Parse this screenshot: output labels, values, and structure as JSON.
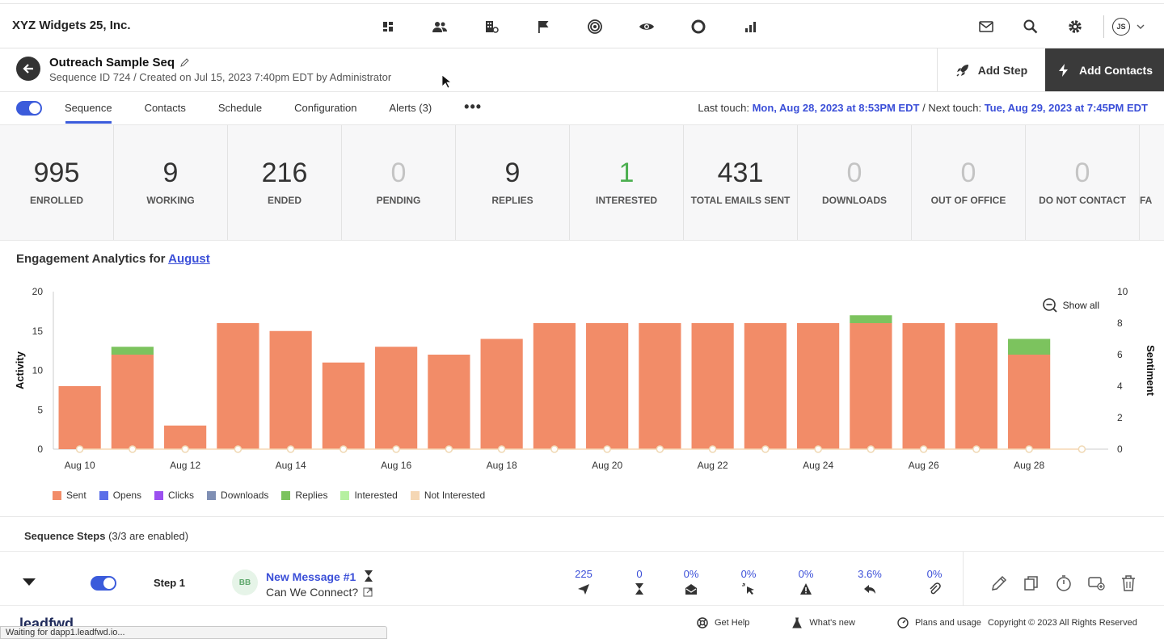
{
  "brand": "XYZ Widgets 25, Inc.",
  "nav_icons": [
    "dashboard-icon",
    "contacts-icon",
    "companies-icon",
    "flag-icon",
    "target-icon",
    "eye-icon",
    "circle-icon",
    "reports-icon"
  ],
  "right_icons": [
    "mail-icon",
    "search-icon",
    "gear-icon"
  ],
  "user": {
    "initials": "JS"
  },
  "header": {
    "title": "Outreach Sample Seq",
    "subtitle": "Sequence ID 724 / Created on Jul 15, 2023 7:40pm EDT by Administrator",
    "add_step": "Add Step",
    "add_contacts": "Add Contacts"
  },
  "tabs": [
    "Sequence",
    "Contacts",
    "Schedule",
    "Configuration",
    "Alerts (3)"
  ],
  "active_tab": "Sequence",
  "touch": {
    "last_label": "Last touch:",
    "last_value": "Mon, Aug 28, 2023 at 8:53PM EDT",
    "separator": "/",
    "next_label": "Next touch:",
    "next_value": "Tue, Aug 29, 2023 at 7:45PM EDT"
  },
  "stats": [
    {
      "value": "995",
      "label": "ENROLLED",
      "style": "normal"
    },
    {
      "value": "9",
      "label": "WORKING",
      "style": "normal"
    },
    {
      "value": "216",
      "label": "ENDED",
      "style": "normal"
    },
    {
      "value": "0",
      "label": "PENDING",
      "style": "zero"
    },
    {
      "value": "9",
      "label": "REPLIES",
      "style": "normal"
    },
    {
      "value": "1",
      "label": "INTERESTED",
      "style": "green"
    },
    {
      "value": "431",
      "label": "TOTAL EMAILS SENT",
      "style": "normal"
    },
    {
      "value": "0",
      "label": "DOWNLOADS",
      "style": "zero"
    },
    {
      "value": "0",
      "label": "OUT OF OFFICE",
      "style": "zero"
    },
    {
      "value": "0",
      "label": "DO NOT CONTACT",
      "style": "zero"
    },
    {
      "value": "",
      "label": "FA",
      "style": "zero"
    }
  ],
  "analytics": {
    "title_prefix": "Engagement Analytics for",
    "month": "August",
    "show_all": "Show all"
  },
  "chart_data": {
    "type": "bar",
    "stacked": true,
    "categories": [
      "Aug 10",
      "Aug 11",
      "Aug 12",
      "Aug 13",
      "Aug 14",
      "Aug 15",
      "Aug 16",
      "Aug 17",
      "Aug 18",
      "Aug 19",
      "Aug 20",
      "Aug 21",
      "Aug 22",
      "Aug 23",
      "Aug 24",
      "Aug 25",
      "Aug 26",
      "Aug 27",
      "Aug 28",
      "Aug 29"
    ],
    "tick_labels": [
      "Aug 10",
      "Aug 12",
      "Aug 14",
      "Aug 16",
      "Aug 18",
      "Aug 20",
      "Aug 22",
      "Aug 24",
      "Aug 26",
      "Aug 28"
    ],
    "series": [
      {
        "name": "Sent",
        "color": "#f28c68",
        "values": [
          8,
          12,
          3,
          16,
          15,
          11,
          13,
          12,
          14,
          16,
          16,
          16,
          16,
          16,
          16,
          16,
          16,
          16,
          12,
          0
        ]
      },
      {
        "name": "Replies",
        "color": "#7cc35e",
        "values": [
          0,
          1,
          0,
          0,
          0,
          0,
          0,
          0,
          0,
          0,
          0,
          0,
          0,
          0,
          0,
          1,
          0,
          0,
          2,
          0
        ]
      }
    ],
    "sentiment": [
      0,
      0,
      0,
      0,
      0,
      0,
      0,
      0,
      0,
      0,
      0,
      0,
      0,
      0,
      0,
      0,
      0,
      0,
      0,
      0
    ],
    "ylabel": "Activity",
    "y2label": "Sentiment",
    "ylim": [
      0,
      20
    ],
    "y_ticks": [
      0,
      5,
      10,
      15,
      20
    ],
    "y2lim": [
      0,
      10
    ],
    "y2_ticks": [
      0,
      2,
      4,
      6,
      8,
      10
    ],
    "legend": [
      {
        "name": "Sent",
        "color": "#f28c68"
      },
      {
        "name": "Opens",
        "color": "#5b6ee8"
      },
      {
        "name": "Clicks",
        "color": "#9b4ff0"
      },
      {
        "name": "Downloads",
        "color": "#7f8fb4"
      },
      {
        "name": "Replies",
        "color": "#7cc35e"
      },
      {
        "name": "Interested",
        "color": "#b6f0a0"
      },
      {
        "name": "Not Interested",
        "color": "#f5d7b4"
      }
    ]
  },
  "steps": {
    "title": "Sequence Steps",
    "count": "(3/3 are enabled)",
    "step1": {
      "label": "Step 1",
      "avatar": "BB",
      "title": "New Message #1",
      "subject": "Can We Connect?",
      "metrics": [
        {
          "value": "225",
          "icon": "sent-icon"
        },
        {
          "value": "0",
          "icon": "hourglass-icon"
        },
        {
          "value": "0%",
          "icon": "opened-icon"
        },
        {
          "value": "0%",
          "icon": "click-icon"
        },
        {
          "value": "0%",
          "icon": "warning-icon"
        },
        {
          "value": "3.6%",
          "icon": "reply-icon"
        },
        {
          "value": "0%",
          "icon": "attachment-icon"
        }
      ]
    }
  },
  "footer": {
    "logo": "leadfwd",
    "get_help": "Get Help",
    "whats_new": "What's new",
    "plans": "Plans and usage",
    "copyright": "Copyright © 2023 All Rights Reserved"
  },
  "status_text": "Waiting for dapp1.leadfwd.io..."
}
